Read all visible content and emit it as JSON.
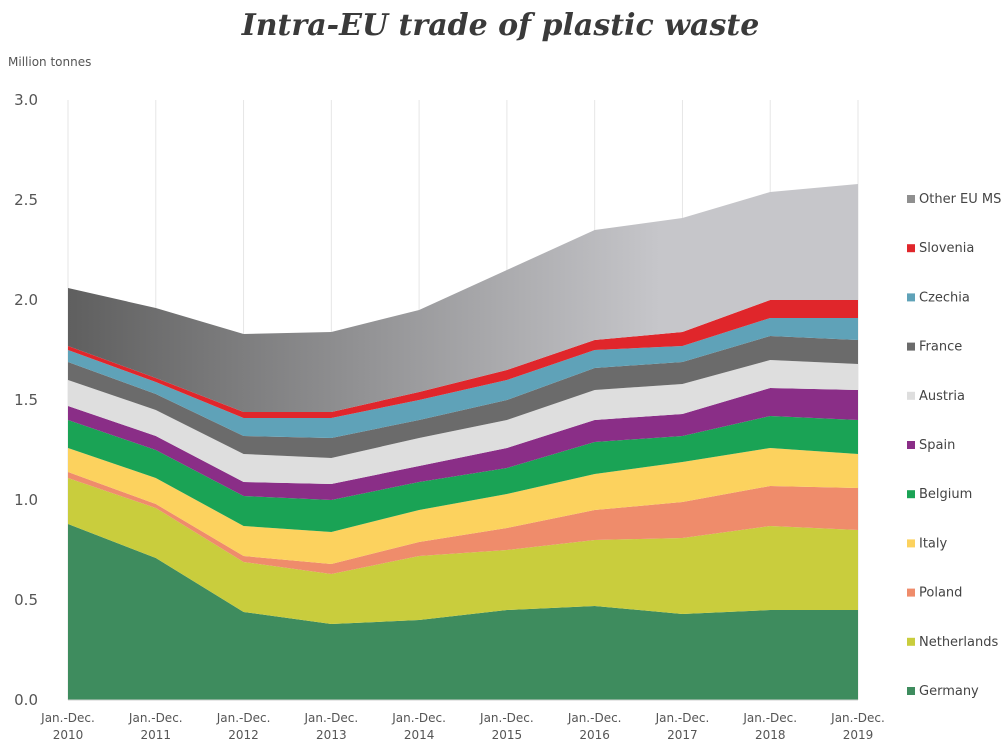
{
  "chart_data": {
    "type": "area",
    "stacked": true,
    "title": "Intra-EU trade of plastic waste",
    "ylabel": "Million tonnes",
    "xlabel": "",
    "ylim": [
      0,
      3.0
    ],
    "yticks": [
      "0.0",
      "0.5",
      "1.0",
      "1.5",
      "2.0",
      "2.5",
      "3.0"
    ],
    "categories": [
      [
        "Jan.-Dec.",
        "2010"
      ],
      [
        "Jan.-Dec.",
        "2011"
      ],
      [
        "Jan.-Dec.",
        "2012"
      ],
      [
        "Jan.-Dec.",
        "2013"
      ],
      [
        "Jan.-Dec.",
        "2014"
      ],
      [
        "Jan.-Dec.",
        "2015"
      ],
      [
        "Jan.-Dec.",
        "2016"
      ],
      [
        "Jan.-Dec.",
        "2017"
      ],
      [
        "Jan.-Dec.",
        "2018"
      ],
      [
        "Jan.-Dec.",
        "2019"
      ]
    ],
    "grid": "vertical",
    "legend": "right",
    "series": [
      {
        "name": "Germany",
        "color": "#3e8c5e",
        "values": [
          0.88,
          0.71,
          0.44,
          0.38,
          0.4,
          0.45,
          0.47,
          0.43,
          0.45,
          0.45
        ]
      },
      {
        "name": "Netherlands",
        "color": "#c9cd3d",
        "values": [
          0.23,
          0.25,
          0.25,
          0.25,
          0.32,
          0.3,
          0.33,
          0.38,
          0.42,
          0.4
        ]
      },
      {
        "name": "Poland",
        "color": "#ef8c6b",
        "values": [
          0.03,
          0.02,
          0.03,
          0.05,
          0.07,
          0.11,
          0.15,
          0.18,
          0.2,
          0.21
        ]
      },
      {
        "name": "Italy",
        "color": "#fcd25e",
        "values": [
          0.12,
          0.13,
          0.15,
          0.16,
          0.16,
          0.17,
          0.18,
          0.2,
          0.19,
          0.17
        ]
      },
      {
        "name": "Belgium",
        "color": "#1aa355",
        "values": [
          0.14,
          0.14,
          0.15,
          0.16,
          0.14,
          0.13,
          0.16,
          0.13,
          0.16,
          0.17
        ]
      },
      {
        "name": "Spain",
        "color": "#8a2e87",
        "values": [
          0.07,
          0.07,
          0.07,
          0.08,
          0.08,
          0.1,
          0.11,
          0.11,
          0.14,
          0.15
        ]
      },
      {
        "name": "Austria",
        "color": "#dedede",
        "values": [
          0.13,
          0.13,
          0.14,
          0.13,
          0.14,
          0.14,
          0.15,
          0.15,
          0.14,
          0.13
        ]
      },
      {
        "name": "France",
        "color": "#6b6b6b",
        "values": [
          0.09,
          0.08,
          0.09,
          0.1,
          0.09,
          0.1,
          0.11,
          0.11,
          0.12,
          0.12
        ]
      },
      {
        "name": "Czechia",
        "color": "#5fa2b8",
        "values": [
          0.06,
          0.06,
          0.09,
          0.1,
          0.1,
          0.1,
          0.09,
          0.08,
          0.09,
          0.11
        ]
      },
      {
        "name": "Slovenia",
        "color": "#e0262b",
        "values": [
          0.02,
          0.02,
          0.03,
          0.03,
          0.04,
          0.05,
          0.05,
          0.07,
          0.09,
          0.09
        ]
      },
      {
        "name": "Other EU MS",
        "color": "#b8b8bc",
        "values": [
          0.29,
          0.35,
          0.39,
          0.4,
          0.41,
          0.5,
          0.55,
          0.57,
          0.54,
          0.58
        ]
      }
    ],
    "legend_order": [
      "Other EU MS",
      "Slovenia",
      "Czechia",
      "France",
      "Austria",
      "Spain",
      "Belgium",
      "Italy",
      "Poland",
      "Netherlands",
      "Germany"
    ],
    "colors": {
      "top_layer_gradient_dark": "#5f5f5f",
      "top_layer_gradient_light": "#c6c6ca",
      "grid": "#e6e6e6",
      "axis": "#cfcfcf"
    }
  }
}
